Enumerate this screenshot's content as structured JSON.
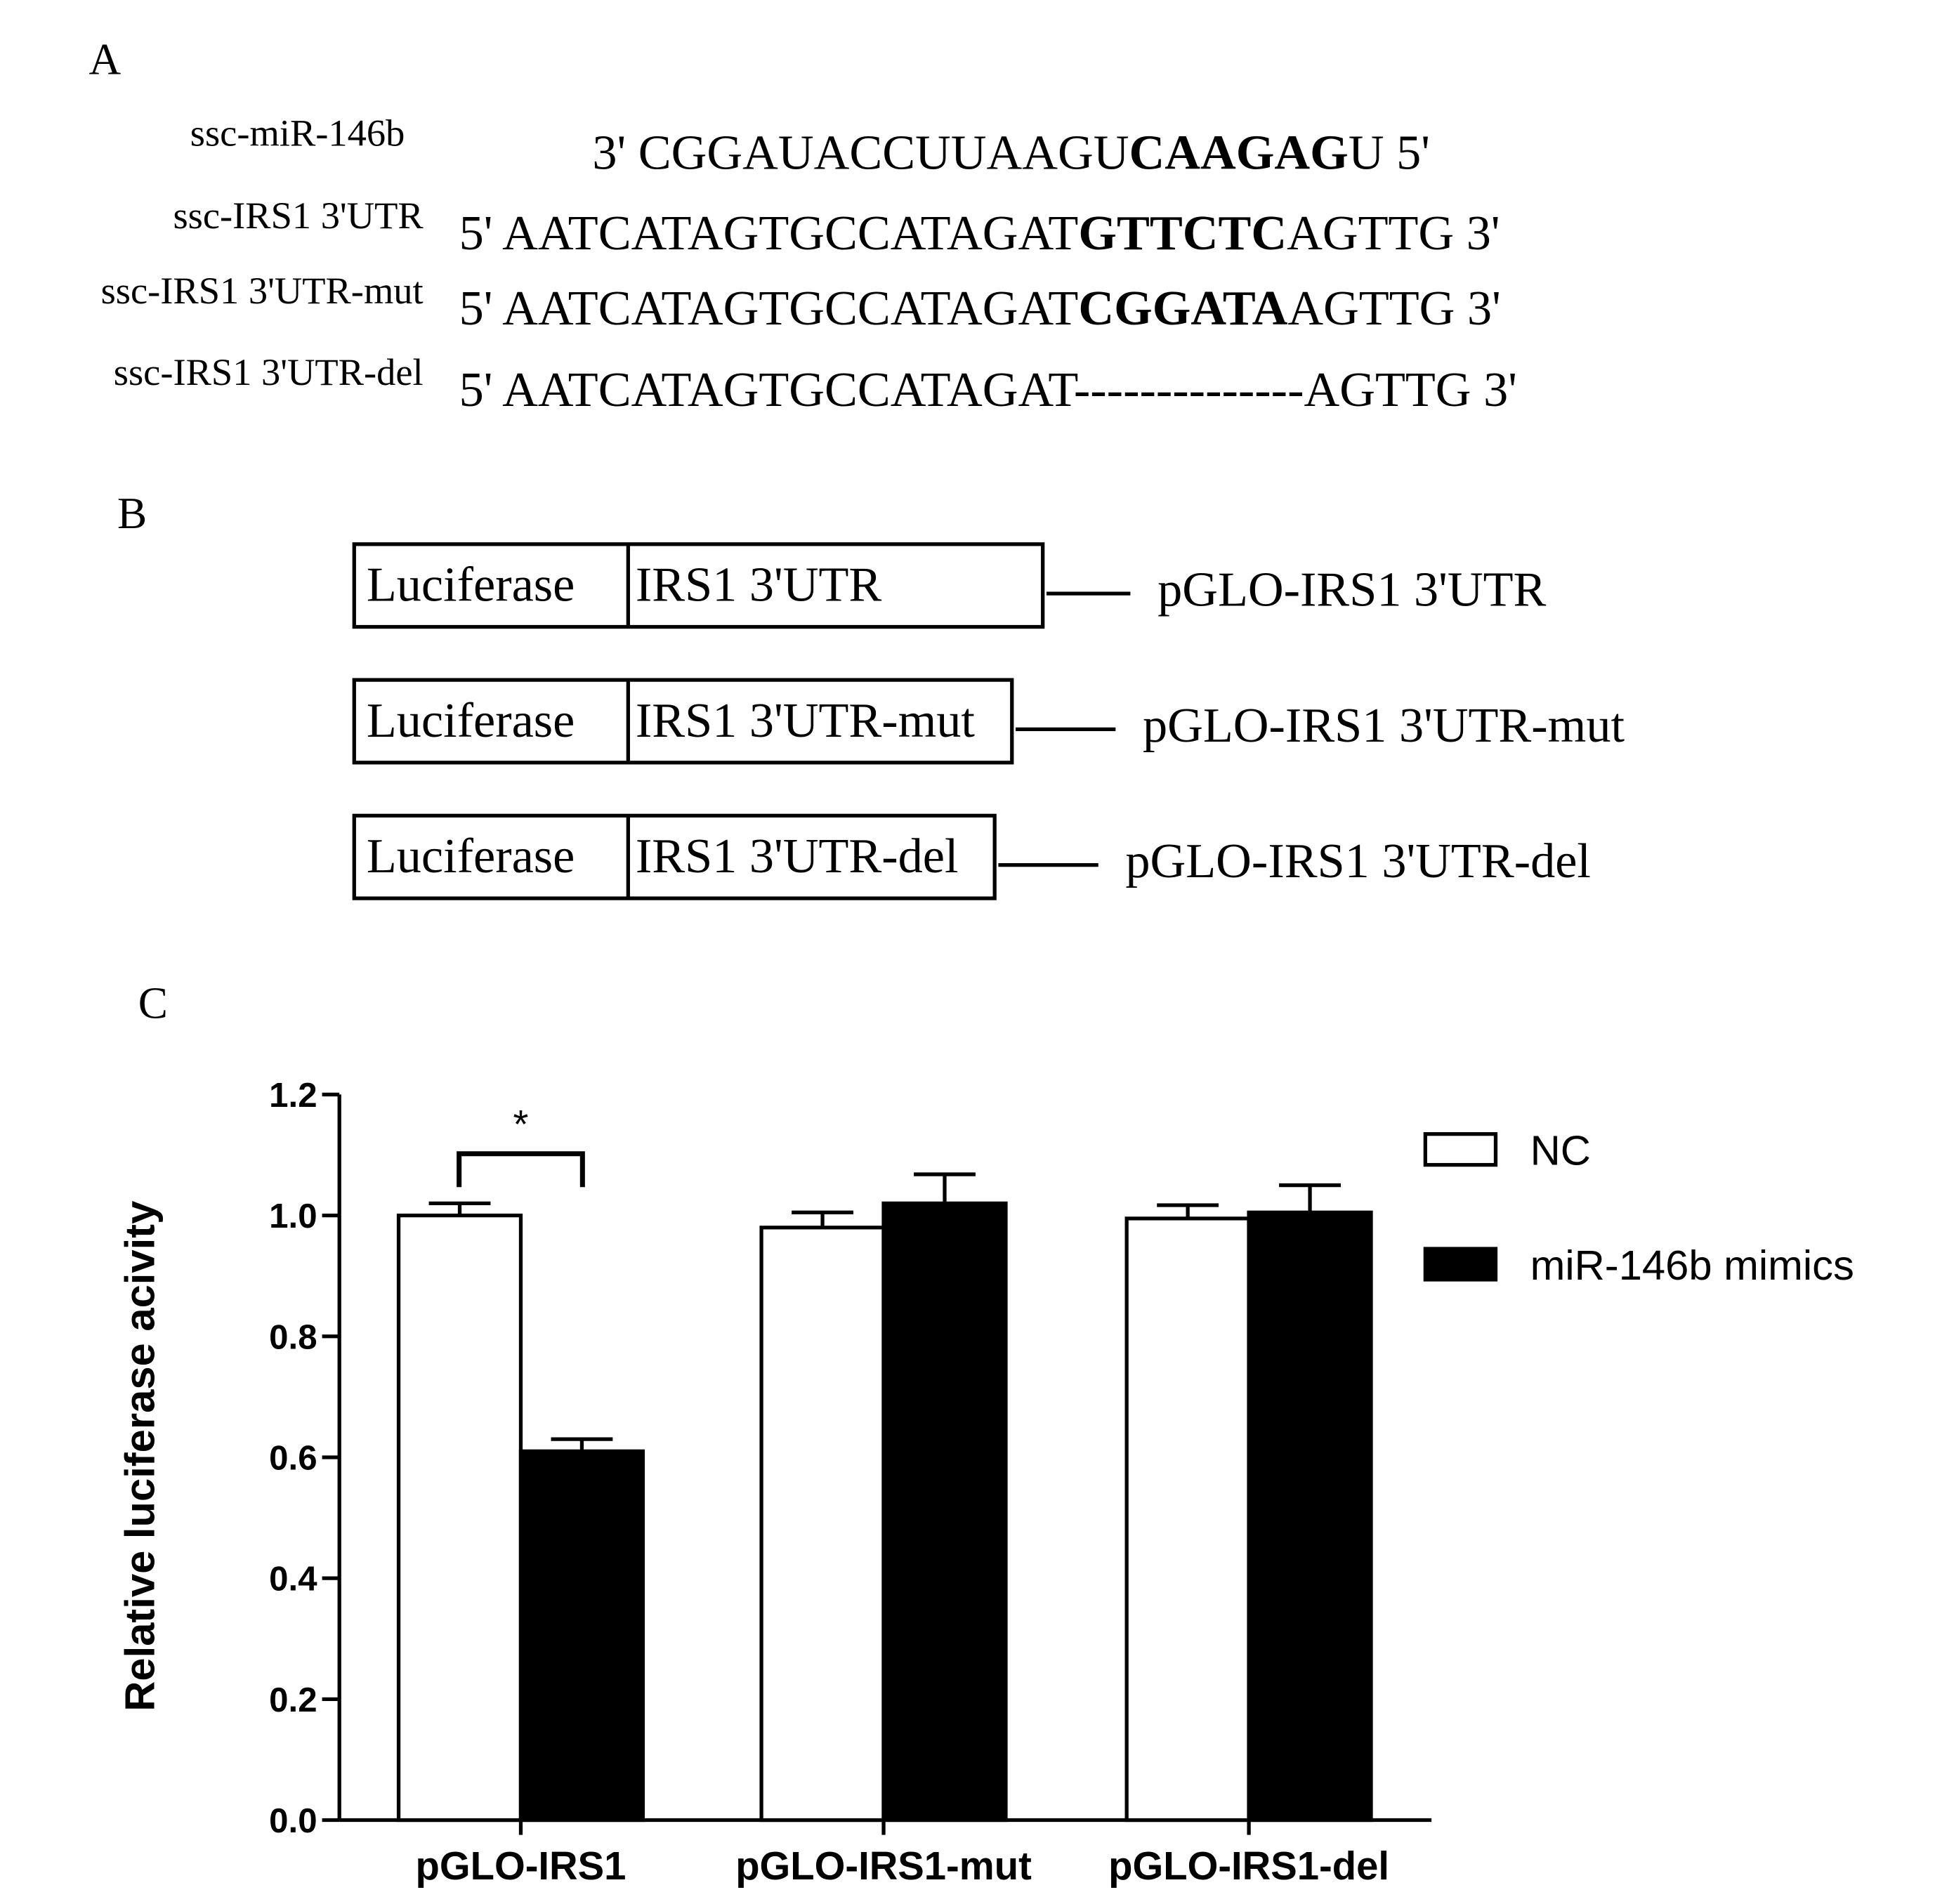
{
  "panel_a": {
    "label": "A",
    "rows": [
      {
        "name": "ssc-miR-146b",
        "segments": [
          {
            "text": "3' CGGAUACCUUAAGU",
            "bold": false
          },
          {
            "text": "CAAGAG",
            "bold": true
          },
          {
            "text": "U 5'",
            "bold": false
          }
        ]
      },
      {
        "name": "ssc-IRS1 3'UTR",
        "segments": [
          {
            "text": "5' AATCATAGTGCCATAGAT",
            "bold": false
          },
          {
            "text": "GTTCTC",
            "bold": true
          },
          {
            "text": "AGTTG 3'",
            "bold": false
          }
        ]
      },
      {
        "name": "ssc-IRS1 3'UTR-mut",
        "segments": [
          {
            "text": "5' AATCATAGTGCCATAGAT",
            "bold": false
          },
          {
            "text": "CGGATA",
            "bold": true
          },
          {
            "text": "AGTTG 3'",
            "bold": false
          }
        ]
      },
      {
        "name": "ssc-IRS1 3'UTR-del",
        "segments": [
          {
            "text": "5' AATCATAGTGCCATAGAT--------------AGTTG 3'",
            "bold": false
          }
        ]
      }
    ]
  },
  "panel_b": {
    "label": "B",
    "constructs": [
      {
        "reporter": "Luciferase",
        "insert": "IRS1 3'UTR",
        "name": "pGLO-IRS1 3'UTR"
      },
      {
        "reporter": "Luciferase",
        "insert": "IRS1 3'UTR-mut",
        "name": "pGLO-IRS1 3'UTR-mut"
      },
      {
        "reporter": "Luciferase",
        "insert": "IRS1 3'UTR-del",
        "name": "pGLO-IRS1 3'UTR-del"
      }
    ]
  },
  "chart_data": {
    "type": "bar",
    "panel_label": "C",
    "y_label": "Relative luciferase acivity",
    "categories": [
      "pGLO-IRS1",
      "pGLO-IRS1-mut",
      "pGLO-IRS1-del"
    ],
    "series": [
      {
        "name": "NC",
        "color": "#ffffff",
        "values": [
          1.0,
          0.98,
          0.995
        ],
        "errors": [
          0.02,
          0.025,
          0.022
        ]
      },
      {
        "name": "miR-146b mimics",
        "color": "#000000",
        "values": [
          0.61,
          1.02,
          1.005
        ],
        "errors": [
          0.02,
          0.048,
          0.045
        ]
      }
    ],
    "ylim": [
      0,
      1.2
    ],
    "yticks": [
      {
        "value": 0,
        "label": "0.0"
      },
      0.2,
      0.4,
      0.6,
      0.8,
      {
        "value": 1,
        "label": "1.0"
      },
      1.2
    ],
    "annotations": [
      {
        "text": "*"
      }
    ],
    "legend": "upper right"
  }
}
